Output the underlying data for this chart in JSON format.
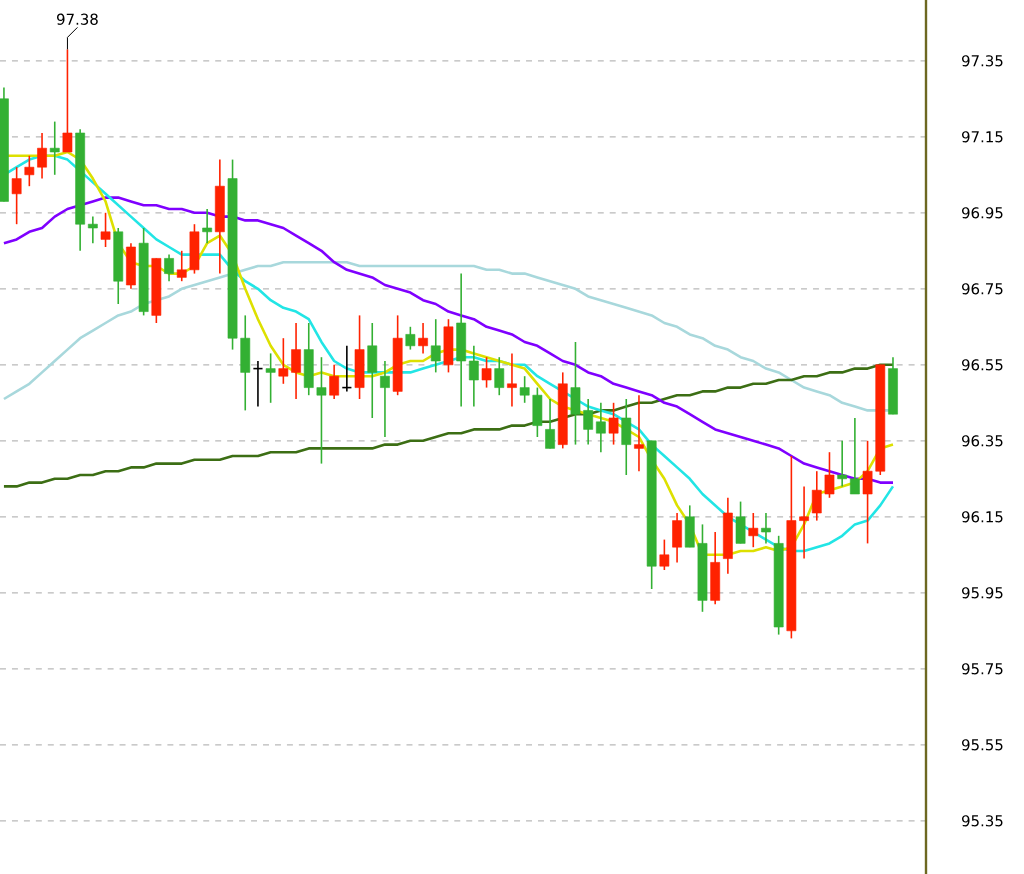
{
  "chart_data": {
    "type": "candlestick",
    "categories": [
      null,
      null,
      null,
      null,
      null,
      null,
      null,
      null,
      null,
      null,
      null,
      null,
      null,
      null,
      null,
      null,
      null,
      null,
      null,
      null,
      null,
      null,
      null,
      null,
      null,
      null,
      null,
      null,
      null,
      null,
      null,
      null,
      null,
      null,
      null,
      null,
      null,
      null,
      null,
      null,
      null,
      null,
      null,
      null,
      null,
      null,
      null,
      null,
      null,
      null,
      null,
      null,
      null,
      null,
      null,
      null,
      null,
      null,
      null,
      null,
      null,
      null,
      null,
      null,
      null,
      null,
      null,
      null,
      null,
      null,
      null
    ],
    "ohlc": [
      [
        97.25,
        97.28,
        96.98,
        96.98
      ],
      [
        97.0,
        97.07,
        96.92,
        97.04
      ],
      [
        97.05,
        97.1,
        97.02,
        97.07
      ],
      [
        97.07,
        97.16,
        97.04,
        97.12
      ],
      [
        97.12,
        97.19,
        97.05,
        97.11
      ],
      [
        97.11,
        97.38,
        97.11,
        97.16
      ],
      [
        97.16,
        97.17,
        96.85,
        96.92
      ],
      [
        96.92,
        96.94,
        96.87,
        96.91
      ],
      [
        96.88,
        96.95,
        96.86,
        96.9
      ],
      [
        96.9,
        96.91,
        96.71,
        96.77
      ],
      [
        96.76,
        96.87,
        96.75,
        96.86
      ],
      [
        96.87,
        96.91,
        96.68,
        96.69
      ],
      [
        96.68,
        96.83,
        96.66,
        96.83
      ],
      [
        96.83,
        96.84,
        96.77,
        96.79
      ],
      [
        96.78,
        96.85,
        96.77,
        96.8
      ],
      [
        96.8,
        96.92,
        96.79,
        96.9
      ],
      [
        96.91,
        96.96,
        96.87,
        96.9
      ],
      [
        96.9,
        97.09,
        96.79,
        97.02
      ],
      [
        97.04,
        97.09,
        96.59,
        96.62
      ],
      [
        96.62,
        96.68,
        96.43,
        96.53
      ],
      [
        96.54,
        96.56,
        96.44,
        96.54
      ],
      [
        96.54,
        96.58,
        96.45,
        96.53
      ],
      [
        96.52,
        96.62,
        96.5,
        96.54
      ],
      [
        96.53,
        96.66,
        96.46,
        96.59
      ],
      [
        96.59,
        96.66,
        96.47,
        96.49
      ],
      [
        96.49,
        96.57,
        96.29,
        96.47
      ],
      [
        96.47,
        96.55,
        96.46,
        96.52
      ],
      [
        96.49,
        96.6,
        96.48,
        96.49
      ],
      [
        96.49,
        96.68,
        96.46,
        96.59
      ],
      [
        96.6,
        96.66,
        96.41,
        96.53
      ],
      [
        96.52,
        96.56,
        96.36,
        96.49
      ],
      [
        96.48,
        96.68,
        96.47,
        96.62
      ],
      [
        96.63,
        96.65,
        96.59,
        96.6
      ],
      [
        96.6,
        96.66,
        96.58,
        96.62
      ],
      [
        96.6,
        96.67,
        96.53,
        96.56
      ],
      [
        96.55,
        96.67,
        96.53,
        96.65
      ],
      [
        96.66,
        96.79,
        96.44,
        96.56
      ],
      [
        96.56,
        96.6,
        96.44,
        96.51
      ],
      [
        96.51,
        96.57,
        96.49,
        96.54
      ],
      [
        96.54,
        96.57,
        96.47,
        96.49
      ],
      [
        96.49,
        96.58,
        96.44,
        96.5
      ],
      [
        96.49,
        96.52,
        96.45,
        96.47
      ],
      [
        96.47,
        96.49,
        96.36,
        96.39
      ],
      [
        96.38,
        96.46,
        96.33,
        96.33
      ],
      [
        96.34,
        96.53,
        96.33,
        96.5
      ],
      [
        96.49,
        96.61,
        96.34,
        96.42
      ],
      [
        96.43,
        96.46,
        96.34,
        96.38
      ],
      [
        96.4,
        96.45,
        96.32,
        96.37
      ],
      [
        96.37,
        96.45,
        96.34,
        96.41
      ],
      [
        96.41,
        96.46,
        96.26,
        96.34
      ],
      [
        96.33,
        96.47,
        96.27,
        96.34
      ],
      [
        96.35,
        96.35,
        95.96,
        96.02
      ],
      [
        96.02,
        96.09,
        96.01,
        96.05
      ],
      [
        96.07,
        96.16,
        96.03,
        96.14
      ],
      [
        96.15,
        96.18,
        96.07,
        96.07
      ],
      [
        96.08,
        96.13,
        95.9,
        95.93
      ],
      [
        95.93,
        96.11,
        95.92,
        96.03
      ],
      [
        96.04,
        96.2,
        96.0,
        96.16
      ],
      [
        96.15,
        96.19,
        96.08,
        96.08
      ],
      [
        96.1,
        96.16,
        96.07,
        96.12
      ],
      [
        96.12,
        96.16,
        96.08,
        96.11
      ],
      [
        96.08,
        96.1,
        95.84,
        95.86
      ],
      [
        95.85,
        96.31,
        95.83,
        96.14
      ],
      [
        96.14,
        96.23,
        96.04,
        96.15
      ],
      [
        96.16,
        96.27,
        96.14,
        96.22
      ],
      [
        96.21,
        96.32,
        96.2,
        96.26
      ],
      [
        96.26,
        96.35,
        96.23,
        96.25
      ],
      [
        96.25,
        96.41,
        96.21,
        96.21
      ],
      [
        96.21,
        96.35,
        96.08,
        96.27
      ],
      [
        96.27,
        96.55,
        96.26,
        96.55
      ],
      [
        96.54,
        96.57,
        96.42,
        96.42
      ]
    ],
    "colors": [
      "#33b033",
      "#ff2200",
      "#ff2200",
      "#ff2200",
      "#33b033",
      "#ff2200",
      "#33b033",
      "#33b033",
      "#ff2200",
      "#33b033",
      "#ff2200",
      "#33b033",
      "#ff2200",
      "#33b033",
      "#ff2200",
      "#ff2200",
      "#33b033",
      "#ff2200",
      "#33b033",
      "#33b033",
      "#000000",
      "#33b033",
      "#ff2200",
      "#ff2200",
      "#33b033",
      "#33b033",
      "#ff2200",
      "#000000",
      "#ff2200",
      "#33b033",
      "#33b033",
      "#ff2200",
      "#33b033",
      "#ff2200",
      "#33b033",
      "#ff2200",
      "#33b033",
      "#33b033",
      "#ff2200",
      "#33b033",
      "#ff2200",
      "#33b033",
      "#33b033",
      "#33b033",
      "#ff2200",
      "#33b033",
      "#33b033",
      "#33b033",
      "#ff2200",
      "#33b033",
      "#ff2200",
      "#33b033",
      "#ff2200",
      "#ff2200",
      "#33b033",
      "#33b033",
      "#ff2200",
      "#ff2200",
      "#33b033",
      "#ff2200",
      "#33b033",
      "#33b033",
      "#ff2200",
      "#ff2200",
      "#ff2200",
      "#ff2200",
      "#33b033",
      "#33b033",
      "#ff2200",
      "#ff2200",
      "#33b033"
    ],
    "series": [
      {
        "type": "line",
        "color": "#a8d8dc",
        "values": [
          96.46,
          96.48,
          96.5,
          96.53,
          96.56,
          96.59,
          96.62,
          96.64,
          96.66,
          96.68,
          96.69,
          96.71,
          96.72,
          96.73,
          96.75,
          96.76,
          96.77,
          96.78,
          96.79,
          96.8,
          96.81,
          96.81,
          96.82,
          96.82,
          96.82,
          96.82,
          96.82,
          96.82,
          96.81,
          96.81,
          96.81,
          96.81,
          96.81,
          96.81,
          96.81,
          96.81,
          96.81,
          96.81,
          96.8,
          96.8,
          96.79,
          96.79,
          96.78,
          96.77,
          96.76,
          96.75,
          96.73,
          96.72,
          96.71,
          96.7,
          96.69,
          96.68,
          96.66,
          96.65,
          96.63,
          96.62,
          96.6,
          96.59,
          96.57,
          96.56,
          96.54,
          96.53,
          96.51,
          96.49,
          96.48,
          96.47,
          96.45,
          96.44,
          96.43,
          96.43,
          96.43
        ]
      },
      {
        "type": "line",
        "color": "#3c6e14",
        "values": [
          96.23,
          96.23,
          96.24,
          96.24,
          96.25,
          96.25,
          96.26,
          96.26,
          96.27,
          96.27,
          96.28,
          96.28,
          96.29,
          96.29,
          96.29,
          96.3,
          96.3,
          96.3,
          96.31,
          96.31,
          96.31,
          96.32,
          96.32,
          96.32,
          96.33,
          96.33,
          96.33,
          96.33,
          96.33,
          96.33,
          96.34,
          96.34,
          96.35,
          96.35,
          96.36,
          96.37,
          96.37,
          96.38,
          96.38,
          96.38,
          96.39,
          96.39,
          96.4,
          96.4,
          96.41,
          96.42,
          96.42,
          96.43,
          96.43,
          96.44,
          96.45,
          96.45,
          96.46,
          96.47,
          96.47,
          96.48,
          96.48,
          96.49,
          96.49,
          96.5,
          96.5,
          96.51,
          96.51,
          96.52,
          96.52,
          96.53,
          96.53,
          96.54,
          96.54,
          96.55,
          96.55
        ]
      },
      {
        "type": "line",
        "color": "#7f00ff",
        "values": [
          96.87,
          96.88,
          96.9,
          96.91,
          96.94,
          96.96,
          96.97,
          96.98,
          96.99,
          96.99,
          96.98,
          96.97,
          96.97,
          96.96,
          96.96,
          96.95,
          96.95,
          96.94,
          96.94,
          96.93,
          96.93,
          96.92,
          96.91,
          96.89,
          96.87,
          96.85,
          96.82,
          96.8,
          96.79,
          96.78,
          96.76,
          96.75,
          96.74,
          96.72,
          96.71,
          96.69,
          96.68,
          96.67,
          96.65,
          96.64,
          96.63,
          96.61,
          96.6,
          96.58,
          96.56,
          96.55,
          96.53,
          96.52,
          96.5,
          96.49,
          96.48,
          96.47,
          96.45,
          96.44,
          96.42,
          96.4,
          96.38,
          96.37,
          96.36,
          96.35,
          96.34,
          96.33,
          96.31,
          96.29,
          96.28,
          96.27,
          96.26,
          96.25,
          96.25,
          96.24,
          96.24
        ]
      },
      {
        "type": "line",
        "color": "#22e5e5",
        "values": [
          97.05,
          97.07,
          97.09,
          97.1,
          97.1,
          97.09,
          97.06,
          97.03,
          97.0,
          96.97,
          96.94,
          96.91,
          96.88,
          96.86,
          96.84,
          96.84,
          96.84,
          96.84,
          96.8,
          96.77,
          96.75,
          96.72,
          96.7,
          96.69,
          96.67,
          96.61,
          96.56,
          96.54,
          96.53,
          96.53,
          96.53,
          96.53,
          96.53,
          96.54,
          96.55,
          96.56,
          96.57,
          96.57,
          96.56,
          96.56,
          96.55,
          96.55,
          96.52,
          96.5,
          96.48,
          96.46,
          96.44,
          96.43,
          96.42,
          96.4,
          96.38,
          96.34,
          96.31,
          96.28,
          96.25,
          96.21,
          96.18,
          96.15,
          96.13,
          96.11,
          96.09,
          96.07,
          96.06,
          96.06,
          96.07,
          96.08,
          96.1,
          96.13,
          96.14,
          96.18,
          96.23
        ]
      },
      {
        "type": "line",
        "color": "#dde000",
        "values": [
          97.1,
          97.1,
          97.1,
          97.1,
          97.1,
          97.11,
          97.09,
          97.04,
          96.98,
          96.87,
          96.82,
          96.81,
          96.81,
          96.79,
          96.79,
          96.81,
          96.87,
          96.89,
          96.84,
          96.75,
          96.67,
          96.6,
          96.55,
          96.53,
          96.52,
          96.53,
          96.52,
          96.52,
          96.52,
          96.52,
          96.53,
          96.55,
          96.56,
          96.56,
          96.58,
          96.59,
          96.59,
          96.58,
          96.57,
          96.56,
          96.55,
          96.54,
          96.5,
          96.46,
          96.44,
          96.43,
          96.42,
          96.41,
          96.4,
          96.38,
          96.36,
          96.3,
          96.25,
          96.18,
          96.13,
          96.05,
          96.05,
          96.05,
          96.06,
          96.06,
          96.07,
          96.06,
          96.07,
          96.13,
          96.21,
          96.22,
          96.23,
          96.24,
          96.27,
          96.33,
          96.34
        ]
      }
    ],
    "ylim": [
      95.21,
      97.51
    ],
    "yticks": [
      95.35,
      95.55,
      95.75,
      95.95,
      96.15,
      96.35,
      96.55,
      96.75,
      96.95,
      97.15,
      97.35
    ],
    "grid": "y",
    "annotations": [
      {
        "text": "97.38",
        "y": 97.38
      }
    ]
  }
}
